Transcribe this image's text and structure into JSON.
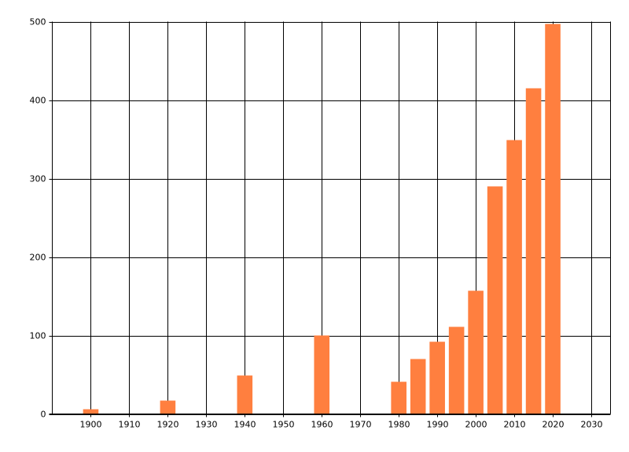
{
  "chart_data": {
    "type": "bar",
    "x": [
      1900,
      1920,
      1940,
      1960,
      1980,
      1985,
      1990,
      1995,
      2000,
      2005,
      2010,
      2015,
      2020
    ],
    "values": [
      6,
      17,
      49,
      100,
      41,
      70,
      92,
      111,
      157,
      290,
      349,
      415,
      497
    ],
    "color": "#ff7f3f",
    "bar_width": 4,
    "xlim": [
      1890,
      2035
    ],
    "xticks": [
      1900,
      1910,
      1920,
      1930,
      1940,
      1950,
      1960,
      1970,
      1980,
      1990,
      2000,
      2010,
      2020,
      2030
    ],
    "ylim": [
      0,
      500
    ],
    "yticks": [
      0,
      100,
      200,
      300,
      400,
      500
    ],
    "grid": true
  }
}
